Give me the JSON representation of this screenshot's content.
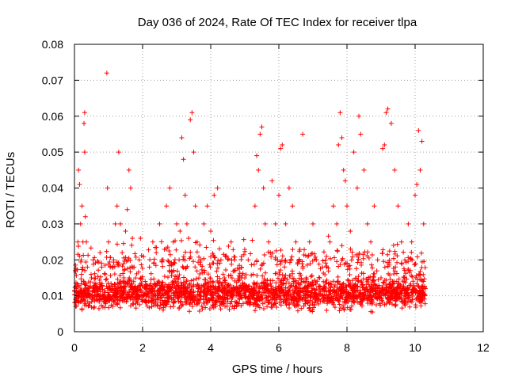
{
  "chart_data": {
    "type": "scatter",
    "title": "Day 036 of 2024, Rate Of TEC Index for receiver tlpa",
    "xlabel": "GPS time / hours",
    "ylabel": "ROTI / TECUs",
    "xlim": [
      0,
      12
    ],
    "ylim": [
      0,
      0.08
    ],
    "xticks": [
      "0",
      "2",
      "4",
      "6",
      "8",
      "10",
      "12"
    ],
    "yticks": [
      "0",
      "0.01",
      "0.02",
      "0.03",
      "0.04",
      "0.05",
      "0.06",
      "0.07",
      "0.08"
    ],
    "grid": true,
    "marker": "+",
    "color": "#ff0000",
    "series": [
      {
        "name": "ROTI",
        "x": [
          0.05,
          0.1,
          0.12,
          0.15,
          0.18,
          0.2,
          0.22,
          0.25,
          0.28,
          0.3,
          0.3,
          0.32,
          0.35,
          0.38,
          0.4,
          0.42,
          0.45,
          0.5,
          0.55,
          0.6,
          0.65,
          0.7,
          0.75,
          0.8,
          0.85,
          0.9,
          0.95,
          0.97,
          1.0,
          1.05,
          1.1,
          1.15,
          1.2,
          1.25,
          1.3,
          1.35,
          1.4,
          1.45,
          1.5,
          1.55,
          1.6,
          1.65,
          1.7,
          1.75,
          1.8,
          1.85,
          1.9,
          1.95,
          2.0,
          2.1,
          2.2,
          2.3,
          2.4,
          2.5,
          2.6,
          2.7,
          2.8,
          2.9,
          3.0,
          3.1,
          3.15,
          3.2,
          3.25,
          3.3,
          3.35,
          3.4,
          3.45,
          3.5,
          3.55,
          3.6,
          3.7,
          3.8,
          3.9,
          4.0,
          4.1,
          4.2,
          4.3,
          4.4,
          4.5,
          4.6,
          4.7,
          4.8,
          4.9,
          5.0,
          5.1,
          5.2,
          5.3,
          5.35,
          5.4,
          5.45,
          5.5,
          5.55,
          5.6,
          5.7,
          5.8,
          5.9,
          6.0,
          6.05,
          6.1,
          6.2,
          6.3,
          6.4,
          6.5,
          6.6,
          6.7,
          6.8,
          6.9,
          7.0,
          7.1,
          7.2,
          7.3,
          7.4,
          7.5,
          7.6,
          7.7,
          7.75,
          7.8,
          7.85,
          7.9,
          7.95,
          8.0,
          8.1,
          8.2,
          8.3,
          8.35,
          8.4,
          8.5,
          8.6,
          8.7,
          8.8,
          8.9,
          9.0,
          9.05,
          9.1,
          9.15,
          9.2,
          9.3,
          9.4,
          9.5,
          9.6,
          9.7,
          9.8,
          9.9,
          10.0,
          10.05,
          10.1,
          10.15,
          10.2,
          10.25,
          10.3
        ],
        "y": [
          0.012,
          0.025,
          0.045,
          0.041,
          0.03,
          0.02,
          0.035,
          0.025,
          0.058,
          0.061,
          0.05,
          0.032,
          0.025,
          0.018,
          0.012,
          0.01,
          0.008,
          0.015,
          0.02,
          0.011,
          0.009,
          0.012,
          0.022,
          0.018,
          0.01,
          0.016,
          0.072,
          0.04,
          0.025,
          0.018,
          0.012,
          0.02,
          0.03,
          0.035,
          0.05,
          0.03,
          0.022,
          0.015,
          0.028,
          0.034,
          0.045,
          0.04,
          0.026,
          0.018,
          0.012,
          0.01,
          0.02,
          0.015,
          0.01,
          0.012,
          0.018,
          0.025,
          0.022,
          0.03,
          0.02,
          0.035,
          0.04,
          0.025,
          0.03,
          0.028,
          0.054,
          0.048,
          0.038,
          0.03,
          0.026,
          0.059,
          0.061,
          0.05,
          0.035,
          0.025,
          0.02,
          0.03,
          0.035,
          0.028,
          0.038,
          0.04,
          0.02,
          0.015,
          0.01,
          0.025,
          0.02,
          0.012,
          0.01,
          0.015,
          0.02,
          0.012,
          0.035,
          0.049,
          0.045,
          0.055,
          0.057,
          0.04,
          0.03,
          0.025,
          0.042,
          0.03,
          0.038,
          0.051,
          0.052,
          0.03,
          0.04,
          0.035,
          0.025,
          0.02,
          0.055,
          0.015,
          0.025,
          0.03,
          0.02,
          0.015,
          0.012,
          0.018,
          0.025,
          0.035,
          0.03,
          0.052,
          0.061,
          0.054,
          0.045,
          0.042,
          0.035,
          0.028,
          0.05,
          0.04,
          0.06,
          0.055,
          0.045,
          0.03,
          0.025,
          0.035,
          0.02,
          0.015,
          0.051,
          0.052,
          0.061,
          0.062,
          0.058,
          0.045,
          0.035,
          0.025,
          0.02,
          0.03,
          0.025,
          0.038,
          0.041,
          0.056,
          0.045,
          0.053,
          0.03,
          0.012
        ]
      }
    ],
    "baseline_band": {
      "x_start": 0.0,
      "x_end": 10.3,
      "y_center": 0.0105,
      "y_spread": 0.0055
    }
  }
}
